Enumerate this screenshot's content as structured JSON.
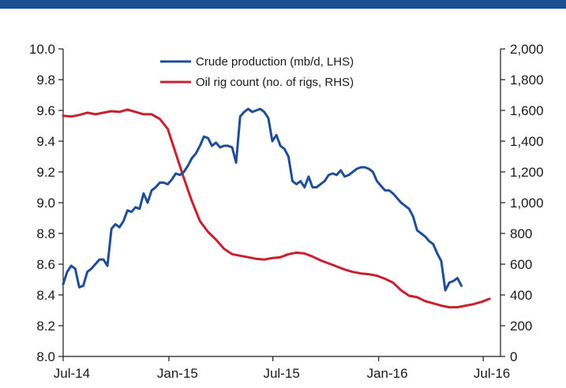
{
  "chart_data": {
    "type": "line",
    "title": "",
    "x_tick_labels": [
      "Jul-14",
      "Jan-15",
      "Jul-15",
      "Jan-16",
      "Jul-16"
    ],
    "x_tick_months": [
      "2014-07",
      "2015-01",
      "2015-07",
      "2016-01",
      "2016-07"
    ],
    "x_range": [
      "2014-07-01",
      "2016-07-31"
    ],
    "grid": false,
    "legend_position": "top-center",
    "left_axis": {
      "min": 8.0,
      "max": 10.0,
      "ticks": [
        8.0,
        8.2,
        8.4,
        8.6,
        8.8,
        9.0,
        9.2,
        9.4,
        9.6,
        9.8,
        10.0
      ],
      "tick_labels": [
        "8.0",
        "8.2",
        "8.4",
        "8.6",
        "8.8",
        "9.0",
        "9.2",
        "9.4",
        "9.6",
        "9.8",
        "10.0"
      ]
    },
    "right_axis": {
      "min": 0,
      "max": 2000,
      "ticks": [
        0,
        200,
        400,
        600,
        800,
        1000,
        1200,
        1400,
        1600,
        1800,
        2000
      ],
      "tick_labels": [
        "0",
        "200",
        "400",
        "600",
        "800",
        "1,000",
        "1,200",
        "1,400",
        "1,600",
        "1,800",
        "2,000"
      ]
    },
    "series": [
      {
        "name": "Crude production (mb/d, LHS)",
        "axis": "left",
        "color": "#1f4e96",
        "points": [
          [
            "2014-07-01",
            8.47
          ],
          [
            "2014-07-08",
            8.55
          ],
          [
            "2014-07-15",
            8.59
          ],
          [
            "2014-07-22",
            8.57
          ],
          [
            "2014-07-29",
            8.45
          ],
          [
            "2014-08-05",
            8.46
          ],
          [
            "2014-08-12",
            8.55
          ],
          [
            "2014-08-19",
            8.57
          ],
          [
            "2014-08-26",
            8.6
          ],
          [
            "2014-09-02",
            8.63
          ],
          [
            "2014-09-09",
            8.63
          ],
          [
            "2014-09-16",
            8.59
          ],
          [
            "2014-09-23",
            8.83
          ],
          [
            "2014-09-30",
            8.86
          ],
          [
            "2014-10-07",
            8.84
          ],
          [
            "2014-10-14",
            8.88
          ],
          [
            "2014-10-21",
            8.95
          ],
          [
            "2014-10-28",
            8.94
          ],
          [
            "2014-11-04",
            8.97
          ],
          [
            "2014-11-11",
            8.96
          ],
          [
            "2014-11-18",
            9.06
          ],
          [
            "2014-11-25",
            9.0
          ],
          [
            "2014-12-02",
            9.08
          ],
          [
            "2014-12-09",
            9.1
          ],
          [
            "2014-12-16",
            9.13
          ],
          [
            "2014-12-23",
            9.13
          ],
          [
            "2014-12-30",
            9.12
          ],
          [
            "2015-01-06",
            9.15
          ],
          [
            "2015-01-13",
            9.19
          ],
          [
            "2015-01-20",
            9.18
          ],
          [
            "2015-01-27",
            9.2
          ],
          [
            "2015-02-03",
            9.24
          ],
          [
            "2015-02-10",
            9.29
          ],
          [
            "2015-02-17",
            9.32
          ],
          [
            "2015-02-24",
            9.37
          ],
          [
            "2015-03-03",
            9.43
          ],
          [
            "2015-03-10",
            9.42
          ],
          [
            "2015-03-17",
            9.37
          ],
          [
            "2015-03-24",
            9.39
          ],
          [
            "2015-03-31",
            9.36
          ],
          [
            "2015-04-07",
            9.37
          ],
          [
            "2015-04-14",
            9.37
          ],
          [
            "2015-04-21",
            9.36
          ],
          [
            "2015-04-28",
            9.26
          ],
          [
            "2015-05-05",
            9.56
          ],
          [
            "2015-05-12",
            9.59
          ],
          [
            "2015-05-19",
            9.61
          ],
          [
            "2015-05-26",
            9.59
          ],
          [
            "2015-06-02",
            9.6
          ],
          [
            "2015-06-09",
            9.61
          ],
          [
            "2015-06-16",
            9.59
          ],
          [
            "2015-06-23",
            9.55
          ],
          [
            "2015-06-30",
            9.4
          ],
          [
            "2015-07-07",
            9.44
          ],
          [
            "2015-07-14",
            9.37
          ],
          [
            "2015-07-21",
            9.35
          ],
          [
            "2015-07-28",
            9.3
          ],
          [
            "2015-08-04",
            9.14
          ],
          [
            "2015-08-11",
            9.12
          ],
          [
            "2015-08-18",
            9.14
          ],
          [
            "2015-08-25",
            9.1
          ],
          [
            "2015-09-01",
            9.17
          ],
          [
            "2015-09-08",
            9.1
          ],
          [
            "2015-09-15",
            9.1
          ],
          [
            "2015-09-22",
            9.12
          ],
          [
            "2015-09-29",
            9.14
          ],
          [
            "2015-10-06",
            9.18
          ],
          [
            "2015-10-13",
            9.19
          ],
          [
            "2015-10-20",
            9.18
          ],
          [
            "2015-10-27",
            9.21
          ],
          [
            "2015-11-03",
            9.17
          ],
          [
            "2015-11-10",
            9.18
          ],
          [
            "2015-11-17",
            9.2
          ],
          [
            "2015-11-24",
            9.22
          ],
          [
            "2015-12-01",
            9.23
          ],
          [
            "2015-12-08",
            9.23
          ],
          [
            "2015-12-15",
            9.22
          ],
          [
            "2015-12-22",
            9.2
          ],
          [
            "2015-12-29",
            9.14
          ],
          [
            "2016-01-05",
            9.11
          ],
          [
            "2016-01-12",
            9.08
          ],
          [
            "2016-01-19",
            9.08
          ],
          [
            "2016-01-26",
            9.06
          ],
          [
            "2016-02-02",
            9.03
          ],
          [
            "2016-02-09",
            9.0
          ],
          [
            "2016-02-16",
            8.98
          ],
          [
            "2016-02-23",
            8.96
          ],
          [
            "2016-03-01",
            8.91
          ],
          [
            "2016-03-08",
            8.82
          ],
          [
            "2016-03-15",
            8.8
          ],
          [
            "2016-03-22",
            8.78
          ],
          [
            "2016-03-29",
            8.75
          ],
          [
            "2016-04-05",
            8.73
          ],
          [
            "2016-04-12",
            8.67
          ],
          [
            "2016-04-19",
            8.62
          ],
          [
            "2016-04-26",
            8.43
          ],
          [
            "2016-05-03",
            8.48
          ],
          [
            "2016-05-10",
            8.49
          ],
          [
            "2016-05-17",
            8.51
          ],
          [
            "2016-05-24",
            8.46
          ]
        ]
      },
      {
        "name": "Oil rig count (no. of rigs, RHS)",
        "axis": "right",
        "color": "#c8202f",
        "points": [
          [
            "2014-07-01",
            1565
          ],
          [
            "2014-07-15",
            1560
          ],
          [
            "2014-07-29",
            1570
          ],
          [
            "2014-08-12",
            1585
          ],
          [
            "2014-08-26",
            1575
          ],
          [
            "2014-09-09",
            1585
          ],
          [
            "2014-09-23",
            1595
          ],
          [
            "2014-10-07",
            1590
          ],
          [
            "2014-10-21",
            1605
          ],
          [
            "2014-11-04",
            1590
          ],
          [
            "2014-11-18",
            1575
          ],
          [
            "2014-12-02",
            1575
          ],
          [
            "2014-12-16",
            1545
          ],
          [
            "2014-12-30",
            1480
          ],
          [
            "2015-01-13",
            1320
          ],
          [
            "2015-01-27",
            1160
          ],
          [
            "2015-02-10",
            1010
          ],
          [
            "2015-02-24",
            880
          ],
          [
            "2015-03-10",
            810
          ],
          [
            "2015-03-24",
            760
          ],
          [
            "2015-04-07",
            700
          ],
          [
            "2015-04-21",
            665
          ],
          [
            "2015-05-05",
            655
          ],
          [
            "2015-05-19",
            645
          ],
          [
            "2015-06-02",
            635
          ],
          [
            "2015-06-16",
            630
          ],
          [
            "2015-06-30",
            640
          ],
          [
            "2015-07-14",
            645
          ],
          [
            "2015-07-28",
            665
          ],
          [
            "2015-08-11",
            675
          ],
          [
            "2015-08-25",
            670
          ],
          [
            "2015-09-08",
            650
          ],
          [
            "2015-09-22",
            625
          ],
          [
            "2015-10-06",
            605
          ],
          [
            "2015-10-20",
            585
          ],
          [
            "2015-11-03",
            565
          ],
          [
            "2015-11-17",
            550
          ],
          [
            "2015-12-01",
            540
          ],
          [
            "2015-12-15",
            535
          ],
          [
            "2015-12-29",
            525
          ],
          [
            "2016-01-12",
            505
          ],
          [
            "2016-01-26",
            480
          ],
          [
            "2016-02-09",
            430
          ],
          [
            "2016-02-23",
            395
          ],
          [
            "2016-03-08",
            385
          ],
          [
            "2016-03-22",
            360
          ],
          [
            "2016-04-05",
            345
          ],
          [
            "2016-04-19",
            330
          ],
          [
            "2016-05-03",
            320
          ],
          [
            "2016-05-17",
            320
          ],
          [
            "2016-05-31",
            330
          ],
          [
            "2016-06-14",
            340
          ],
          [
            "2016-06-28",
            355
          ],
          [
            "2016-07-12",
            375
          ]
        ]
      }
    ]
  }
}
